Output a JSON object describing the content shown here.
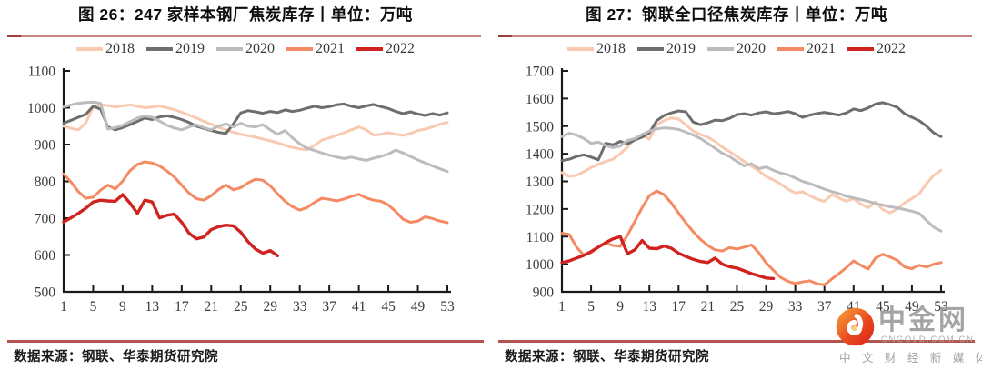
{
  "watermark": {
    "brand": "中金网",
    "domain": "CNGOLD.COM.CN",
    "tagline": "中 文 财 经 新 媒 体"
  },
  "colors": {
    "title_rule_main": "#c4837e",
    "title_rule_tip": "#a03c3a",
    "footer_rule": "#b25350",
    "axis": "#1a1a1a",
    "tick_label": "#3a3a3a",
    "series_2018": "#f9cab1",
    "series_2019": "#6e6e6e",
    "series_2020": "#bcbcbc",
    "series_2021": "#f58a62",
    "series_2022": "#d0221f"
  },
  "chart_data": [
    {
      "type": "line",
      "title": "图 26：247 家样本钢厂焦炭库存丨单位：万吨",
      "source_note": "数据来源：钢联、华泰期货研究院",
      "legend_position": "top",
      "grid": false,
      "x_start_week": 1,
      "xticks": [
        1,
        5,
        9,
        13,
        17,
        21,
        25,
        29,
        33,
        37,
        41,
        45,
        49,
        53
      ],
      "ylim": [
        500,
        1100
      ],
      "yticks": [
        500,
        600,
        700,
        800,
        900,
        1000,
        1100
      ],
      "series": [
        {
          "name": "2018",
          "color": "#f9cab1",
          "values": [
            950,
            944,
            940,
            958,
            1002,
            1008,
            1006,
            1002,
            1005,
            1008,
            1004,
            1000,
            1002,
            1005,
            1000,
            995,
            988,
            980,
            972,
            963,
            955,
            947,
            940,
            933,
            928,
            924,
            920,
            915,
            910,
            905,
            898,
            892,
            888,
            886,
            898,
            912,
            918,
            925,
            932,
            940,
            948,
            940,
            926,
            928,
            932,
            928,
            925,
            930,
            938,
            942,
            948,
            955,
            960
          ]
        },
        {
          "name": "2019",
          "color": "#6e6e6e",
          "values": [
            958,
            966,
            974,
            982,
            1004,
            996,
            948,
            940,
            946,
            954,
            963,
            972,
            968,
            975,
            978,
            974,
            968,
            960,
            950,
            944,
            938,
            933,
            930,
            956,
            986,
            992,
            989,
            985,
            990,
            987,
            994,
            990,
            993,
            999,
            1004,
            1000,
            1003,
            1008,
            1010,
            1004,
            1000,
            1005,
            1009,
            1003,
            998,
            990,
            984,
            989,
            983,
            979,
            984,
            980,
            986
          ]
        },
        {
          "name": "2020",
          "color": "#bcbcbc",
          "values": [
            1002,
            1008,
            1012,
            1014,
            1015,
            1012,
            942,
            946,
            952,
            962,
            972,
            978,
            974,
            964,
            952,
            945,
            940,
            948,
            954,
            946,
            940,
            950,
            956,
            948,
            958,
            950,
            948,
            954,
            940,
            928,
            938,
            918,
            902,
            890,
            884,
            877,
            871,
            866,
            862,
            866,
            861,
            857,
            863,
            868,
            874,
            885,
            877,
            868,
            858,
            850,
            842,
            834,
            827
          ]
        },
        {
          "name": "2021",
          "color": "#f58a62",
          "values": [
            820,
            798,
            772,
            754,
            757,
            776,
            790,
            779,
            801,
            829,
            846,
            853,
            850,
            842,
            828,
            812,
            790,
            768,
            753,
            749,
            761,
            778,
            790,
            777,
            783,
            796,
            806,
            803,
            788,
            766,
            746,
            731,
            722,
            729,
            743,
            754,
            751,
            747,
            752,
            759,
            765,
            755,
            749,
            746,
            736,
            718,
            697,
            689,
            692,
            704,
            699,
            692,
            688
          ]
        },
        {
          "name": "2022",
          "color": "#d0221f",
          "values": [
            690,
            701,
            713,
            727,
            744,
            749,
            747,
            746,
            764,
            741,
            713,
            749,
            744,
            701,
            708,
            711,
            689,
            659,
            644,
            649,
            669,
            677,
            681,
            679,
            662,
            636,
            616,
            605,
            612,
            598
          ]
        }
      ]
    },
    {
      "type": "line",
      "title": "图 27：钢联全口径焦炭库存丨单位：万吨",
      "source_note": "数据来源：钢联、华泰期货研究院",
      "legend_position": "top",
      "grid": false,
      "x_start_week": 1,
      "xticks": [
        1,
        5,
        9,
        13,
        17,
        21,
        25,
        29,
        33,
        37,
        41,
        45,
        49,
        53
      ],
      "ylim": [
        900,
        1700
      ],
      "yticks": [
        900,
        1000,
        1100,
        1200,
        1300,
        1400,
        1500,
        1600,
        1700
      ],
      "series": [
        {
          "name": "2018",
          "color": "#f9cab1",
          "values": [
            1332,
            1318,
            1322,
            1335,
            1350,
            1362,
            1372,
            1380,
            1400,
            1424,
            1455,
            1470,
            1452,
            1505,
            1520,
            1530,
            1526,
            1505,
            1482,
            1470,
            1460,
            1445,
            1424,
            1408,
            1390,
            1372,
            1355,
            1338,
            1318,
            1305,
            1290,
            1272,
            1258,
            1262,
            1248,
            1235,
            1228,
            1252,
            1240,
            1228,
            1238,
            1218,
            1205,
            1225,
            1198,
            1186,
            1200,
            1222,
            1238,
            1255,
            1292,
            1322,
            1340
          ]
        },
        {
          "name": "2019",
          "color": "#6e6e6e",
          "values": [
            1375,
            1380,
            1390,
            1396,
            1388,
            1378,
            1438,
            1432,
            1445,
            1436,
            1450,
            1460,
            1475,
            1520,
            1538,
            1548,
            1555,
            1552,
            1515,
            1505,
            1512,
            1522,
            1520,
            1528,
            1542,
            1545,
            1540,
            1548,
            1552,
            1545,
            1548,
            1553,
            1545,
            1532,
            1540,
            1546,
            1550,
            1545,
            1540,
            1548,
            1562,
            1556,
            1566,
            1580,
            1585,
            1578,
            1568,
            1545,
            1532,
            1520,
            1500,
            1475,
            1462
          ]
        },
        {
          "name": "2020",
          "color": "#bcbcbc",
          "values": [
            1462,
            1474,
            1468,
            1455,
            1438,
            1442,
            1430,
            1422,
            1428,
            1448,
            1455,
            1470,
            1482,
            1490,
            1494,
            1492,
            1488,
            1478,
            1468,
            1455,
            1438,
            1420,
            1402,
            1390,
            1372,
            1356,
            1364,
            1346,
            1352,
            1340,
            1330,
            1324,
            1312,
            1300,
            1292,
            1282,
            1272,
            1263,
            1256,
            1246,
            1240,
            1234,
            1228,
            1220,
            1214,
            1208,
            1204,
            1198,
            1192,
            1184,
            1158,
            1134,
            1120
          ]
        },
        {
          "name": "2021",
          "color": "#f58a62",
          "values": [
            1112,
            1108,
            1062,
            1032,
            1042,
            1062,
            1076,
            1068,
            1065,
            1105,
            1155,
            1205,
            1248,
            1265,
            1252,
            1222,
            1185,
            1150,
            1118,
            1090,
            1068,
            1052,
            1048,
            1060,
            1055,
            1062,
            1070,
            1042,
            1005,
            978,
            952,
            938,
            930,
            936,
            940,
            929,
            925,
            946,
            966,
            988,
            1012,
            996,
            982,
            1022,
            1036,
            1026,
            1014,
            990,
            984,
            996,
            990,
            1000,
            1006
          ]
        },
        {
          "name": "2022",
          "color": "#d0221f",
          "values": [
            1006,
            1012,
            1022,
            1032,
            1046,
            1062,
            1078,
            1092,
            1100,
            1038,
            1052,
            1086,
            1058,
            1056,
            1066,
            1058,
            1040,
            1028,
            1018,
            1010,
            1006,
            1022,
            1000,
            991,
            986,
            976,
            966,
            958,
            950,
            948
          ]
        }
      ]
    }
  ]
}
